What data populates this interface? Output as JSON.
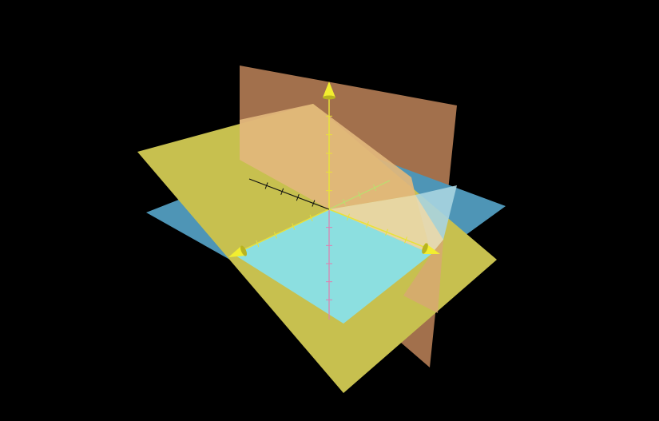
{
  "colors": {
    "background": "#000000",
    "plane_vertical": "#a2704c",
    "plane_horizontal": "#4e95b6",
    "plane_tilted": "#c7c04f",
    "intersection_cyan": "#8cdfe0",
    "intersection_peach": "#e2b77c",
    "intersection_cream": "#ead8ab",
    "axis_yellow": "#e8e23a",
    "axis_black": "#111111",
    "axis_pink": "#e07fb0",
    "arrowhead": "#f2ee30"
  },
  "planes": [
    {
      "name": "vertical-plane",
      "color_key": "plane_vertical"
    },
    {
      "name": "horizontal-plane",
      "color_key": "plane_horizontal"
    },
    {
      "name": "tilted-plane",
      "color_key": "plane_tilted"
    }
  ],
  "axes": [
    {
      "name": "vertical-axis",
      "arrow": true,
      "icon": "cone-arrowhead-icon"
    },
    {
      "name": "left-axis",
      "arrow": true,
      "icon": "cone-arrowhead-icon"
    },
    {
      "name": "right-axis",
      "arrow": true,
      "icon": "cone-arrowhead-icon"
    }
  ]
}
